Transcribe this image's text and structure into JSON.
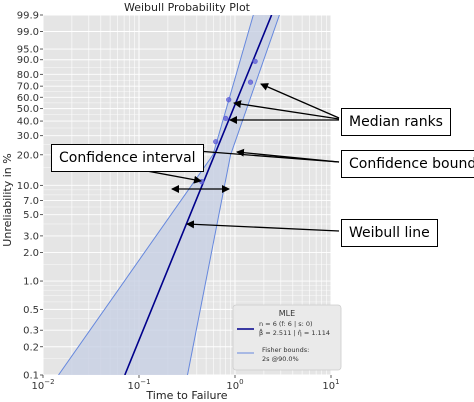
{
  "chart_data": {
    "type": "scatter",
    "title": "Weibull Probability Plot",
    "xlabel": "Time to Failure",
    "ylabel": "Unreliability in %",
    "x_scale": "log",
    "y_scale": "weibull",
    "xlim": [
      0.01,
      10
    ],
    "ylim_percent": [
      0.1,
      99.9
    ],
    "grid": true,
    "x_ticks": [
      {
        "v": 0.01,
        "base": "10",
        "exp": "−2"
      },
      {
        "v": 0.1,
        "base": "10",
        "exp": "−1"
      },
      {
        "v": 1,
        "base": "10",
        "exp": "0"
      },
      {
        "v": 10,
        "base": "10",
        "exp": "1"
      }
    ],
    "y_ticks": [
      {
        "v": 0.1,
        "label": "0.1"
      },
      {
        "v": 0.2,
        "label": "0.2"
      },
      {
        "v": 0.3,
        "label": "0.3"
      },
      {
        "v": 0.5,
        "label": "0.5"
      },
      {
        "v": 1.0,
        "label": "1.0"
      },
      {
        "v": 2.0,
        "label": "2.0"
      },
      {
        "v": 3.0,
        "label": "3.0"
      },
      {
        "v": 5.0,
        "label": "5.0"
      },
      {
        "v": 7.0,
        "label": "7.0"
      },
      {
        "v": 10.0,
        "label": "10.0"
      },
      {
        "v": 20.0,
        "label": "20.0"
      },
      {
        "v": 30.0,
        "label": "30.0"
      },
      {
        "v": 40.0,
        "label": "40.0"
      },
      {
        "v": 50.0,
        "label": "50.0"
      },
      {
        "v": 60.0,
        "label": "60.0"
      },
      {
        "v": 70.0,
        "label": "70.0"
      },
      {
        "v": 80.0,
        "label": "80.0"
      },
      {
        "v": 90.0,
        "label": "90.0"
      },
      {
        "v": 95.0,
        "label": "95.0"
      },
      {
        "v": 99.0,
        "label": "99.0"
      },
      {
        "v": 99.9,
        "label": "99.9"
      }
    ],
    "data_points": [
      {
        "x": 0.45,
        "y": 10.9
      },
      {
        "x": 0.63,
        "y": 26.5
      },
      {
        "x": 0.8,
        "y": 42.1
      },
      {
        "x": 0.86,
        "y": 57.8
      },
      {
        "x": 1.45,
        "y": 73.5
      },
      {
        "x": 1.62,
        "y": 89.1
      }
    ],
    "weibull_fit": {
      "beta": 2.511,
      "eta": 1.114
    },
    "confidence_bounds": {
      "label": "Fisher bounds: 2s @90.0%",
      "lower": [
        {
          "x": 0.0145,
          "y": 0.1
        },
        {
          "x": 0.59,
          "y": 20.0
        },
        {
          "x": 1.55,
          "y": 99.9
        }
      ],
      "upper": [
        {
          "x": 0.32,
          "y": 0.1
        },
        {
          "x": 0.9,
          "y": 20.0
        },
        {
          "x": 2.9,
          "y": 99.9
        }
      ]
    },
    "legend": {
      "position": "bottom-right",
      "title": "MLE",
      "line1": "n = 6 (f: 6 | s: 0)",
      "line2": "β̂ = 2.511 | η̂ = 1.114",
      "line3": "Fisher bounds:",
      "line4": "2s @90.0%"
    },
    "colors": {
      "background": "#e5e5e5",
      "grid": "#ffffff",
      "fit_line": "#00008b",
      "bounds": "#6688dd",
      "band": "#c7d0e4",
      "points": "#5b5bd6",
      "legend_bg": "#eaeaea"
    }
  },
  "callouts": {
    "median_ranks": "Median ranks",
    "confidence_bounds": "Confidence bounds",
    "confidence_interval": "Confidence interval",
    "weibull_line": "Weibull line"
  }
}
